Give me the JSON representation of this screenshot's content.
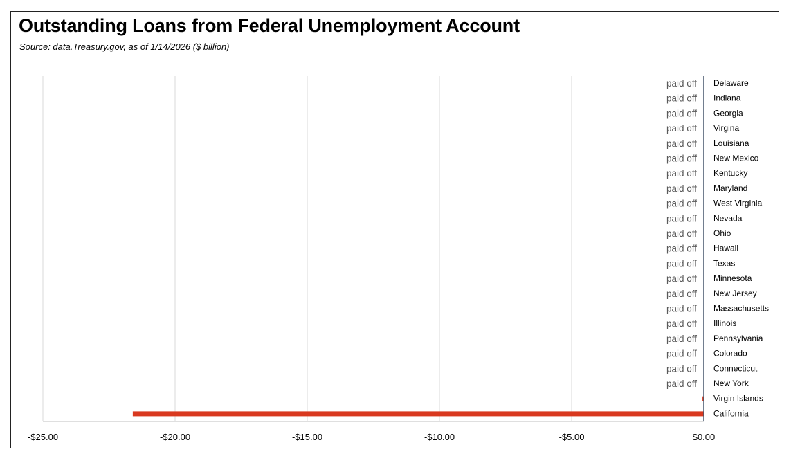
{
  "title": "Outstanding Loans from Federal Unemployment Account",
  "subtitle": "Source:  data.Treasury.gov, as of 1/14/2026  ($ billion)",
  "colors": {
    "bar": "#d9391f",
    "grid": "#d9d9d9",
    "axis": "#44546a",
    "data_label": "#595959"
  },
  "chart_data": {
    "type": "bar",
    "orientation": "horizontal",
    "title": "Outstanding Loans from Federal Unemployment Account",
    "subtitle": "Source:  data.Treasury.gov, as of 1/14/2026  ($ billion)",
    "xlim": [
      -25,
      0
    ],
    "xticks": [
      -25,
      -20,
      -15,
      -10,
      -5,
      0
    ],
    "xtick_labels": [
      "-$25.00",
      "-$20.00",
      "-$15.00",
      "-$10.00",
      "-$5.00",
      "$0.00"
    ],
    "grid": true,
    "categories": [
      "Delaware",
      "Indiana",
      "Georgia",
      "Virgina",
      "Louisiana",
      "New Mexico",
      "Kentucky",
      "Maryland",
      "West Virginia",
      "Nevada",
      "Ohio",
      "Hawaii",
      "Texas",
      "Minnesota",
      "New Jersey",
      "Massachusetts",
      "Illinois",
      "Pennsylvania",
      "Colorado",
      "Connecticut",
      "New York",
      "Virgin Islands",
      "California"
    ],
    "values": [
      0,
      0,
      0,
      0,
      0,
      0,
      0,
      0,
      0,
      0,
      0,
      0,
      0,
      0,
      0,
      0,
      0,
      0,
      0,
      0,
      0,
      -0.05,
      -21.6
    ],
    "data_labels": [
      "paid off",
      "paid off",
      "paid off",
      "paid off",
      "paid off",
      "paid off",
      "paid off",
      "paid off",
      "paid off",
      "paid off",
      "paid off",
      "paid off",
      "paid off",
      "paid off",
      "paid off",
      "paid off",
      "paid off",
      "paid off",
      "paid off",
      "paid off",
      "paid off",
      "",
      ""
    ]
  }
}
